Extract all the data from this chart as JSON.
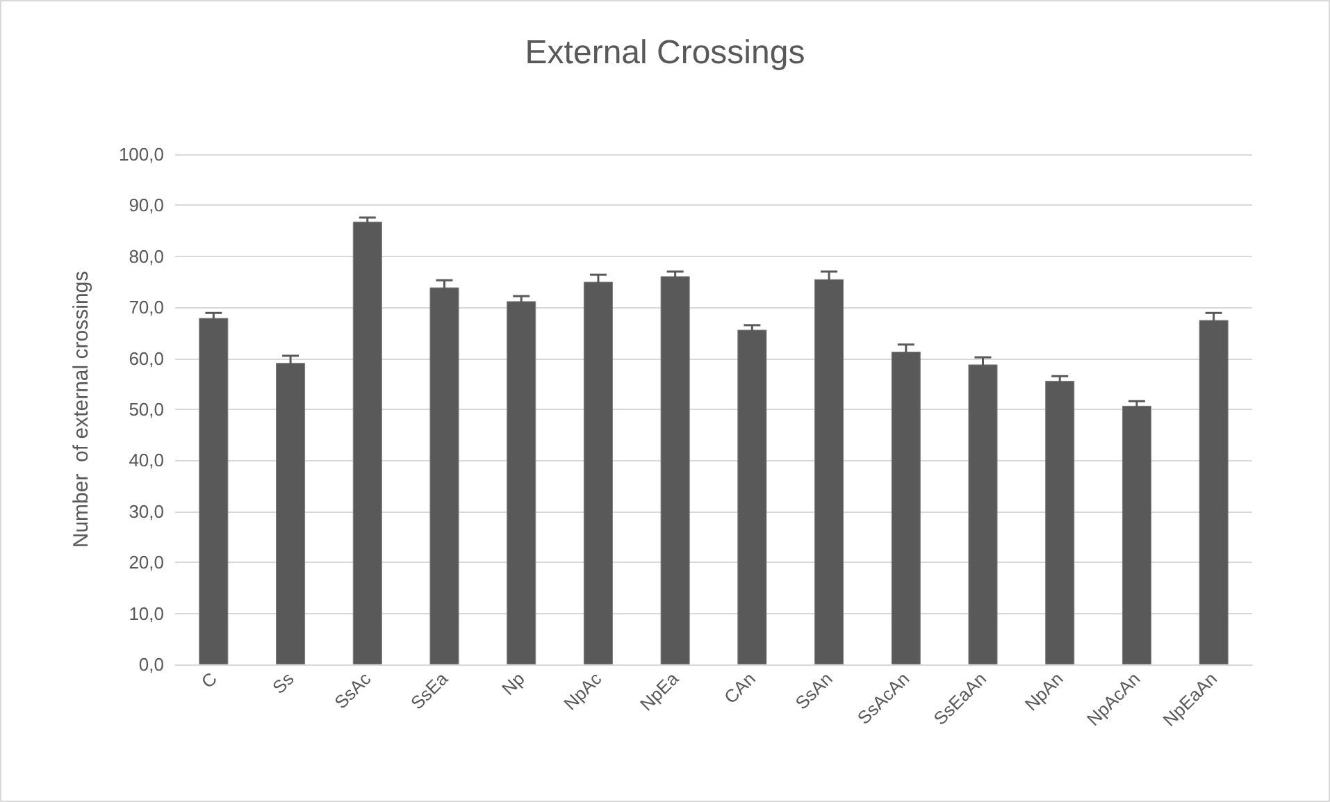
{
  "chart_data": {
    "type": "bar",
    "title": "External Crossings",
    "ylabel": "Number  of external crossings",
    "categories": [
      "C",
      "Ss",
      "SsAc",
      "SsEa",
      "Np",
      "NpAc",
      "NpEa",
      "CAn",
      "SsAn",
      "SsAcAn",
      "SsEaAn",
      "NpAn",
      "NpAcAn",
      "NpEaAn"
    ],
    "values": [
      67.9,
      59.1,
      86.8,
      73.9,
      71.2,
      75.0,
      76.1,
      65.6,
      75.5,
      61.3,
      58.8,
      55.6,
      50.7,
      67.5
    ],
    "errors": [
      1.0,
      1.4,
      0.8,
      1.4,
      1.0,
      1.4,
      0.9,
      0.9,
      1.5,
      1.4,
      1.4,
      0.9,
      0.9,
      1.4
    ],
    "color": "#595959",
    "ylim": [
      0,
      100
    ],
    "yticks": [
      {
        "value": 0,
        "label": "0,0"
      },
      {
        "value": 10,
        "label": "10,0"
      },
      {
        "value": 20,
        "label": "20,0"
      },
      {
        "value": 30,
        "label": "30,0"
      },
      {
        "value": 40,
        "label": "40,0"
      },
      {
        "value": 50,
        "label": "50,0"
      },
      {
        "value": 60,
        "label": "60,0"
      },
      {
        "value": 70,
        "label": "70,0"
      },
      {
        "value": 80,
        "label": "80,0"
      },
      {
        "value": 90,
        "label": "90,0"
      },
      {
        "value": 100,
        "label": "100,0"
      }
    ],
    "grid": "y"
  }
}
